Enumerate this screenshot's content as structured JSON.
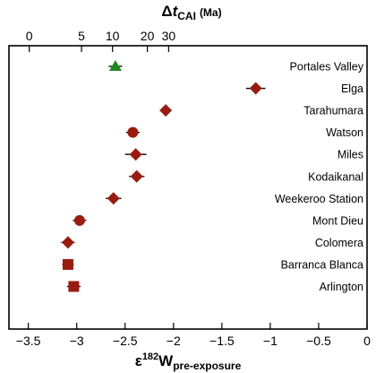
{
  "chart_data": {
    "type": "scatter",
    "title": "",
    "xlabel": {
      "symbol": "ε",
      "superscript": "182",
      "base": "W",
      "subscript": "pre-exposure"
    },
    "top_axis_label": {
      "delta": "Δ",
      "t": "t",
      "subscript": "CAI",
      "unit": "(Ma)"
    },
    "xlim": [
      -3.7,
      0
    ],
    "xticks": [
      -3.5,
      -3,
      -2.5,
      -2,
      -1.5,
      -1,
      -0.5,
      0
    ],
    "xtick_labels": [
      "−3.5",
      "−3",
      "−2.5",
      "−2",
      "−1.5",
      "−1",
      "−0.5",
      "0"
    ],
    "top_ticks": [
      {
        "label": "0",
        "x": -3.49
      },
      {
        "label": "5",
        "x": -2.95
      },
      {
        "label": "10",
        "x": -2.63
      },
      {
        "label": "20",
        "x": -2.27
      },
      {
        "label": "30",
        "x": -2.05
      }
    ],
    "grid": false,
    "colors": {
      "iron_meteorite": "#9b1b0f",
      "pallasite": "#1f8a1f",
      "error_bar": "#000000"
    },
    "points": [
      {
        "name": "Portales Valley",
        "x": -2.6,
        "err": 0.07,
        "marker": "triangle",
        "color": "#1f8a1f"
      },
      {
        "name": "Elga",
        "x": -1.15,
        "err": 0.1,
        "marker": "diamond",
        "color": "#9b1b0f"
      },
      {
        "name": "Tarahumara",
        "x": -2.08,
        "err": 0.06,
        "marker": "diamond",
        "color": "#9b1b0f"
      },
      {
        "name": "Watson",
        "x": -2.42,
        "err": 0.07,
        "marker": "circle",
        "color": "#9b1b0f"
      },
      {
        "name": "Miles",
        "x": -2.39,
        "err": 0.11,
        "marker": "diamond",
        "color": "#9b1b0f"
      },
      {
        "name": "Kodaikanal",
        "x": -2.38,
        "err": 0.08,
        "marker": "diamond",
        "color": "#9b1b0f"
      },
      {
        "name": "Weekeroo Station",
        "x": -2.62,
        "err": 0.08,
        "marker": "diamond",
        "color": "#9b1b0f"
      },
      {
        "name": "Mont Dieu",
        "x": -2.97,
        "err": 0.07,
        "marker": "circle",
        "color": "#9b1b0f"
      },
      {
        "name": "Colomera",
        "x": -3.09,
        "err": 0.07,
        "marker": "diamond",
        "color": "#9b1b0f"
      },
      {
        "name": "Barranca Blanca",
        "x": -3.09,
        "err": 0.06,
        "marker": "square",
        "color": "#9b1b0f"
      },
      {
        "name": "Arlington",
        "x": -3.03,
        "err": 0.07,
        "marker": "square",
        "color": "#9b1b0f"
      }
    ]
  }
}
